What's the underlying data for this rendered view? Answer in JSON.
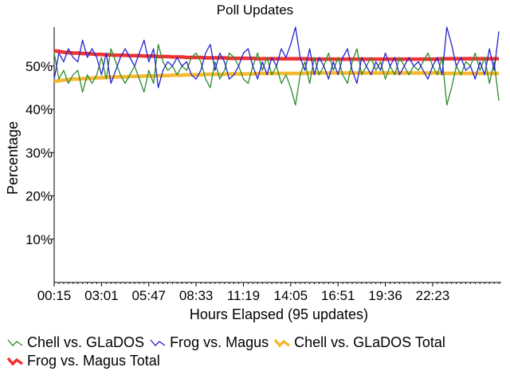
{
  "chart_data": {
    "type": "line",
    "title": "Poll Updates",
    "xlabel": "Hours Elapsed (95 updates)",
    "ylabel": "Percentage",
    "ylim": [
      0,
      59
    ],
    "y_ticks": [
      10,
      20,
      30,
      40,
      50
    ],
    "y_tick_labels": [
      "10%",
      "20%",
      "30%",
      "40%",
      "50%"
    ],
    "x_ticks": [
      0,
      10,
      20,
      30,
      40,
      50,
      60,
      70,
      80
    ],
    "x_tick_labels": [
      "00:15",
      "03:01",
      "05:47",
      "08:33",
      "11:19",
      "14:05",
      "16:51",
      "19:36",
      "22:23"
    ],
    "x_count": 95,
    "grid": false,
    "legend_position": "bottom",
    "series": [
      {
        "name": "Chell vs. GLaDOS",
        "color": "#2e8b2e",
        "width": 1.3,
        "values": [
          53,
          47,
          49,
          46,
          48,
          49,
          44,
          48,
          46,
          48,
          52,
          47,
          54,
          51,
          48,
          46,
          48,
          50,
          47,
          44,
          49,
          46,
          55,
          51,
          49,
          50,
          48,
          50,
          49,
          52,
          53,
          51,
          47,
          45,
          51,
          47,
          49,
          53,
          52,
          50,
          47,
          46,
          50,
          53,
          49,
          52,
          48,
          50,
          46,
          48,
          45,
          41,
          48,
          51,
          46,
          52,
          48,
          50,
          53,
          49,
          52,
          48,
          46,
          51,
          54,
          48,
          50,
          52,
          49,
          51,
          47,
          50,
          48,
          52,
          50,
          48,
          50,
          49,
          51,
          53,
          50,
          48,
          52,
          41,
          45,
          50,
          48,
          51,
          50,
          53,
          49,
          52,
          46,
          51,
          42
        ]
      },
      {
        "name": "Frog vs. Magus",
        "color": "#2424cc",
        "width": 1.3,
        "values": [
          47,
          53,
          51,
          54,
          52,
          51,
          56,
          52,
          54,
          52,
          48,
          53,
          46,
          49,
          52,
          54,
          52,
          50,
          53,
          56,
          51,
          54,
          45,
          49,
          51,
          50,
          52,
          50,
          51,
          48,
          47,
          49,
          53,
          55,
          49,
          53,
          51,
          47,
          48,
          50,
          53,
          54,
          50,
          47,
          51,
          48,
          52,
          50,
          54,
          52,
          55,
          59,
          52,
          49,
          54,
          48,
          52,
          50,
          47,
          51,
          48,
          52,
          54,
          49,
          46,
          52,
          50,
          48,
          51,
          49,
          53,
          50,
          52,
          48,
          50,
          52,
          50,
          51,
          49,
          47,
          50,
          52,
          48,
          59,
          55,
          50,
          52,
          49,
          50,
          47,
          51,
          48,
          54,
          49,
          58
        ]
      },
      {
        "name": "Chell vs. GLaDOS Total",
        "color": "#f5b830",
        "width": 4.5,
        "values": [
          46.5,
          46.6,
          46.8,
          46.9,
          47.0,
          47.0,
          47.1,
          47.1,
          47.2,
          47.3,
          47.3,
          47.4,
          47.4,
          47.5,
          47.5,
          47.5,
          47.6,
          47.6,
          47.6,
          47.7,
          47.7,
          47.7,
          47.8,
          47.8,
          47.8,
          47.9,
          47.9,
          47.9,
          48.0,
          48.0,
          48.0,
          48.0,
          48.1,
          48.1,
          48.1,
          48.1,
          48.1,
          48.2,
          48.2,
          48.2,
          48.2,
          48.2,
          48.2,
          48.3,
          48.3,
          48.3,
          48.3,
          48.3,
          48.3,
          48.3,
          48.3,
          48.3,
          48.3,
          48.3,
          48.4,
          48.4,
          48.4,
          48.4,
          48.4,
          48.4,
          48.4,
          48.4,
          48.4,
          48.4,
          48.4,
          48.4,
          48.4,
          48.4,
          48.4,
          48.4,
          48.4,
          48.4,
          48.4,
          48.4,
          48.4,
          48.4,
          48.4,
          48.4,
          48.4,
          48.4,
          48.4,
          48.4,
          48.3,
          48.3,
          48.3,
          48.3,
          48.3,
          48.3,
          48.3,
          48.3,
          48.3,
          48.3,
          48.3,
          48.3,
          48.3
        ]
      },
      {
        "name": "Frog vs. Magus Total",
        "color": "#ee3333",
        "width": 4.5,
        "values": [
          53.5,
          53.4,
          53.2,
          53.1,
          53.0,
          53.0,
          52.9,
          52.9,
          52.8,
          52.7,
          52.7,
          52.6,
          52.6,
          52.5,
          52.5,
          52.5,
          52.4,
          52.4,
          52.4,
          52.3,
          52.3,
          52.3,
          52.2,
          52.2,
          52.2,
          52.1,
          52.1,
          52.1,
          52.0,
          52.0,
          52.0,
          52.0,
          51.9,
          51.9,
          51.9,
          51.9,
          51.9,
          51.8,
          51.8,
          51.8,
          51.8,
          51.8,
          51.8,
          51.7,
          51.7,
          51.7,
          51.7,
          51.7,
          51.7,
          51.7,
          51.7,
          51.7,
          51.7,
          51.7,
          51.6,
          51.6,
          51.6,
          51.6,
          51.6,
          51.6,
          51.6,
          51.6,
          51.6,
          51.6,
          51.6,
          51.6,
          51.6,
          51.6,
          51.6,
          51.6,
          51.6,
          51.6,
          51.6,
          51.6,
          51.6,
          51.6,
          51.6,
          51.6,
          51.6,
          51.6,
          51.6,
          51.6,
          51.7,
          51.7,
          51.7,
          51.7,
          51.7,
          51.7,
          51.7,
          51.7,
          51.7,
          51.7,
          51.7,
          51.7,
          51.7
        ]
      }
    ]
  }
}
